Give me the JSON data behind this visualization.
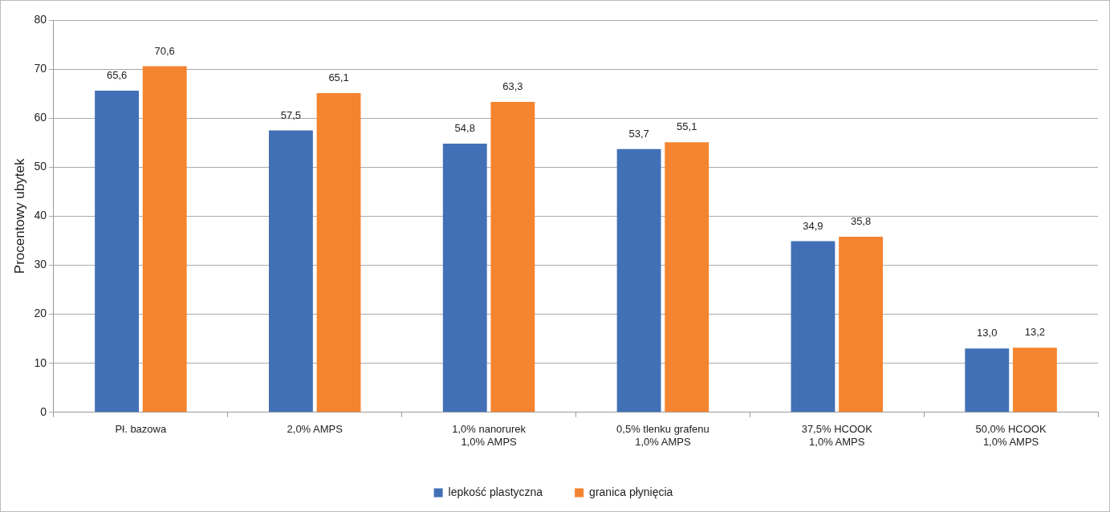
{
  "chart_data": {
    "type": "bar",
    "ylabel": "Procentowy ubytek",
    "categories": [
      "Pł. bazowa",
      "2,0% AMPS",
      "1,0% nanorurek\n1,0% AMPS",
      "0,5% tlenku grafenu\n1,0% AMPS",
      "37,5% HCOOK\n1,0% AMPS",
      "50,0% HCOOK\n1,0% AMPS"
    ],
    "series": [
      {
        "name": "lepkość plastyczna",
        "color": "#4270b6",
        "values": [
          65.6,
          57.5,
          54.8,
          53.7,
          34.9,
          13.0
        ],
        "value_labels": [
          "65,6",
          "57,5",
          "54,8",
          "53,7",
          "34,9",
          "13,0"
        ]
      },
      {
        "name": "granica płynięcia",
        "color": "#f4842f",
        "values": [
          70.6,
          65.1,
          63.3,
          55.1,
          35.8,
          13.2
        ],
        "value_labels": [
          "70,6",
          "65,1",
          "63,3",
          "55,1",
          "35,8",
          "13,2"
        ]
      }
    ],
    "ylim": [
      0,
      80
    ],
    "yticks": [
      0,
      10,
      20,
      30,
      40,
      50,
      60,
      70,
      80
    ],
    "grid": "y",
    "legend": "bottom"
  }
}
